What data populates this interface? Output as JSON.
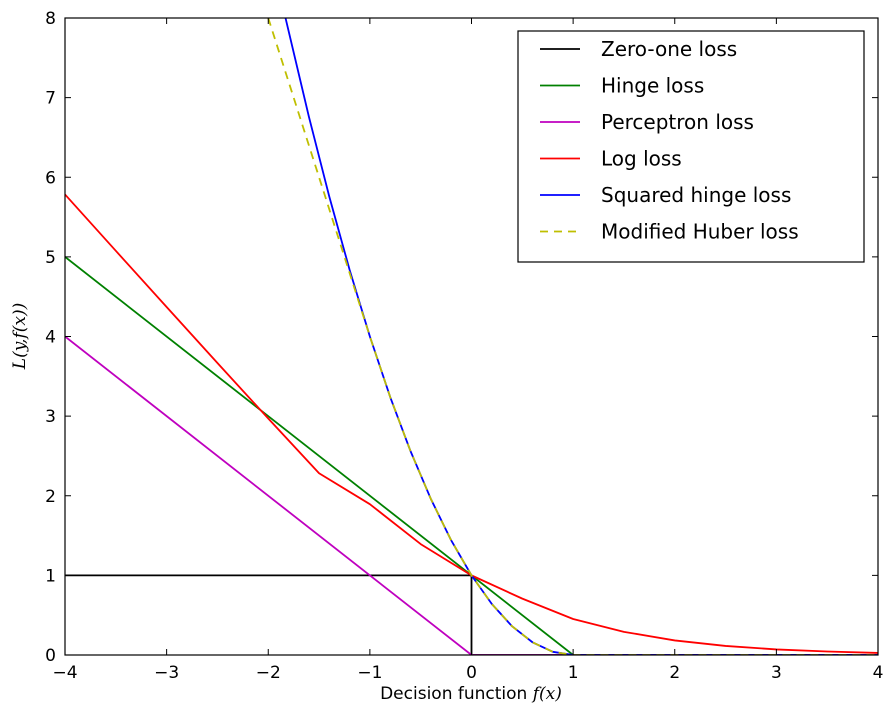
{
  "chart_data": {
    "type": "line",
    "xlabel_text": "Decision function ",
    "xlabel_math": "f(x)",
    "ylabel_math": "L(y,f(x))",
    "xlim": [
      -4,
      4
    ],
    "ylim": [
      0,
      8
    ],
    "x_ticks": [
      -4,
      -3,
      -2,
      -1,
      0,
      1,
      2,
      3,
      4
    ],
    "x_tick_labels": [
      "−4",
      "−3",
      "−2",
      "−1",
      "0",
      "1",
      "2",
      "3",
      "4"
    ],
    "y_ticks": [
      0,
      1,
      2,
      3,
      4,
      5,
      6,
      7,
      8
    ],
    "y_tick_labels": [
      "0",
      "1",
      "2",
      "3",
      "4",
      "5",
      "6",
      "7",
      "8"
    ],
    "grid": false,
    "legend_position": "top-right",
    "series": [
      {
        "name": "Zero-one loss",
        "color": "#000000",
        "dash": "solid",
        "x": [
          -4,
          0,
          0,
          4
        ],
        "y": [
          1,
          1,
          0,
          0
        ]
      },
      {
        "name": "Hinge loss",
        "color": "#008000",
        "dash": "solid",
        "x": [
          -4,
          1,
          4
        ],
        "y": [
          5,
          0,
          0
        ]
      },
      {
        "name": "Perceptron loss",
        "color": "#bf00bf",
        "dash": "solid",
        "x": [
          -4,
          0,
          4
        ],
        "y": [
          4,
          0,
          0
        ]
      },
      {
        "name": "Log loss",
        "color": "#ff0000",
        "dash": "solid",
        "x": [
          -4,
          -3.5,
          -3,
          -2.5,
          -2,
          -1.5,
          -1,
          -0.5,
          0,
          0.5,
          1,
          1.5,
          2,
          2.5,
          3,
          3.5,
          4
        ],
        "y": [
          5.784,
          5.076,
          4.37,
          3.667,
          2.97,
          2.283,
          1.894,
          1.393,
          1.0,
          0.708,
          0.452,
          0.291,
          0.183,
          0.114,
          0.07,
          0.044,
          0.026
        ]
      },
      {
        "name": "Squared hinge loss",
        "color": "#0000ff",
        "dash": "solid",
        "x": [
          -1.83,
          -1.6,
          -1.4,
          -1.2,
          -1.0,
          -0.8,
          -0.6,
          -0.4,
          -0.2,
          0,
          0.2,
          0.4,
          0.6,
          0.8,
          1.0,
          4
        ],
        "y": [
          8.0,
          6.76,
          5.76,
          4.84,
          4.0,
          3.24,
          2.56,
          1.96,
          1.44,
          1.0,
          0.64,
          0.36,
          0.16,
          0.04,
          0,
          0
        ]
      },
      {
        "name": "Modified Huber loss",
        "color": "#bfbf00",
        "dash": "dashed",
        "x": [
          -2,
          -1.6,
          -1.4,
          -1.2,
          -1.0,
          -0.8,
          -0.6,
          -0.4,
          -0.2,
          0,
          0.2,
          0.4,
          0.6,
          0.8,
          1.0,
          4
        ],
        "y": [
          8.0,
          6.4,
          5.6,
          4.8,
          4.0,
          3.24,
          2.56,
          1.96,
          1.44,
          1.0,
          0.64,
          0.36,
          0.16,
          0.04,
          0,
          0
        ]
      }
    ]
  }
}
